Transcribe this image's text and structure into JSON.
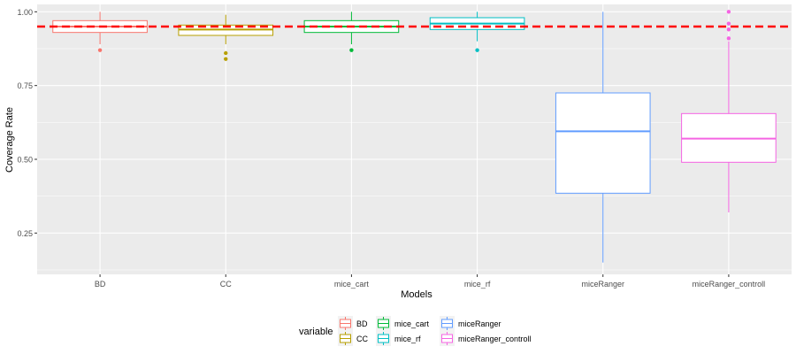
{
  "chart_data": {
    "type": "boxplot",
    "xlabel": "Models",
    "ylabel": "Coverage Rate",
    "ylim": [
      0.11,
      1.025
    ],
    "y_ticks": [
      0.25,
      0.5,
      0.75,
      1.0
    ],
    "y_tick_labels": [
      "0.25",
      "0.50",
      "0.75",
      "1.00"
    ],
    "grid": true,
    "reference_line": {
      "y": 0.95,
      "color": "#FF0000",
      "style": "dashed"
    },
    "categories": [
      "BD",
      "CC",
      "mice_cart",
      "mice_rf",
      "miceRanger",
      "miceRanger_controll"
    ],
    "series": [
      {
        "name": "BD",
        "color": "#F8766D",
        "min": 0.89,
        "q1": 0.93,
        "median": 0.95,
        "q3": 0.97,
        "max": 1.0,
        "outliers": [
          0.87
        ]
      },
      {
        "name": "CC",
        "color": "#B79F00",
        "min": 0.89,
        "q1": 0.92,
        "median": 0.94,
        "q3": 0.955,
        "max": 0.99,
        "outliers": [
          0.86,
          0.84
        ]
      },
      {
        "name": "mice_cart",
        "color": "#00BA38",
        "min": 0.89,
        "q1": 0.93,
        "median": 0.95,
        "q3": 0.97,
        "max": 1.0,
        "outliers": [
          0.87
        ]
      },
      {
        "name": "mice_rf",
        "color": "#00BFC4",
        "min": 0.9,
        "q1": 0.94,
        "median": 0.96,
        "q3": 0.98,
        "max": 1.0,
        "outliers": [
          0.87
        ]
      },
      {
        "name": "miceRanger",
        "color": "#619CFF",
        "min": 0.15,
        "q1": 0.385,
        "median": 0.595,
        "q3": 0.725,
        "max": 1.0,
        "outliers": []
      },
      {
        "name": "miceRanger_controll",
        "color": "#F564E3",
        "min": 0.32,
        "q1": 0.49,
        "median": 0.57,
        "q3": 0.655,
        "max": 0.9,
        "outliers": [
          0.91,
          0.94,
          0.96,
          1.0
        ]
      }
    ],
    "legend": {
      "title": "variable",
      "position": "bottom",
      "entries": [
        "BD",
        "CC",
        "mice_cart",
        "mice_rf",
        "miceRanger",
        "miceRanger_controll"
      ]
    }
  }
}
